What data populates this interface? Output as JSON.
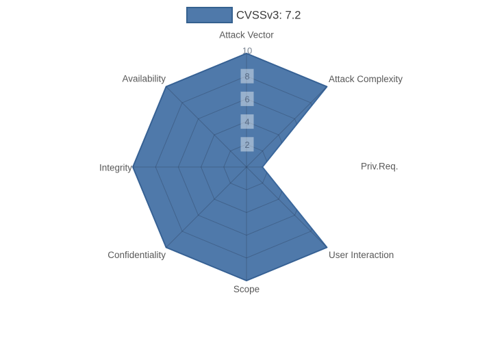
{
  "legend": {
    "label": "CVSSv3: 7.2"
  },
  "chart_data": {
    "type": "radar",
    "title": "",
    "categories": [
      "Attack Vector",
      "Attack Complexity",
      "Priv.Req.",
      "User Interaction",
      "Scope",
      "Confidentiality",
      "Integrity",
      "Availability"
    ],
    "series": [
      {
        "name": "CVSSv3: 7.2",
        "values": [
          10,
          10,
          1.4,
          10,
          10,
          10,
          10,
          10
        ]
      }
    ],
    "radial_range": [
      0,
      10
    ],
    "radial_ticks": [
      "2",
      "4",
      "6",
      "8",
      "10"
    ],
    "angular_layout": "Attack Vector at top, clockwise every 45 degrees",
    "grid": "spider-web rings and spokes, visible only beneath the filled series",
    "legend_position": "top-center",
    "colors": {
      "series_fill": "#426fa4",
      "series_fill_opacity": 0.93,
      "series_line": "#3a679c",
      "grid_line": "rgba(33,47,70,0.30)",
      "tick_box": "rgba(255,255,255,0.42)",
      "tick_box_top": "rgba(255,255,255,0.92)",
      "tick_text": "rgba(77,96,122,0.85)",
      "tick_text_top": "#78828f",
      "category_label": "#585858",
      "legend_text": "#3a3a3a",
      "legend_swatch_border": "#35618f"
    }
  }
}
